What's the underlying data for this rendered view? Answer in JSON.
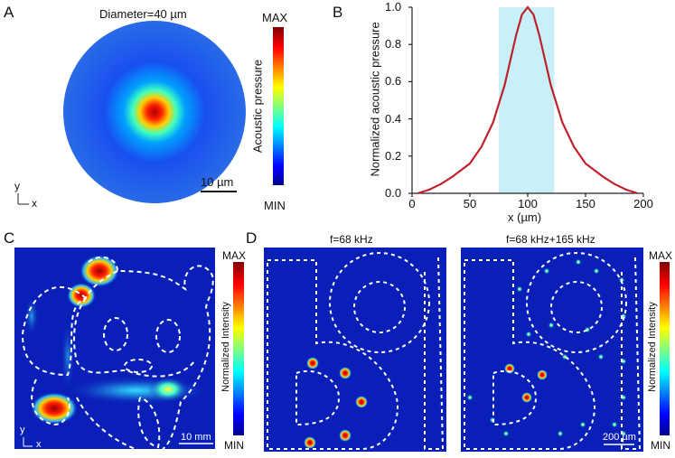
{
  "panels": {
    "a": {
      "label": "A",
      "title": "Diameter=40 µm",
      "scale_bar": "10 µm",
      "axis_y": "y",
      "axis_x": "x",
      "colorbar": {
        "label": "Acoustic pressure",
        "max": "MAX",
        "min": "MIN"
      }
    },
    "b": {
      "label": "B"
    },
    "c": {
      "label": "C",
      "scale_bar": "10 mm",
      "axis_y": "y",
      "axis_x": "x",
      "colorbar": {
        "label": "Normalized Intensity",
        "max": "MAX",
        "min": "MIN"
      }
    },
    "d": {
      "label": "D",
      "left_title": "f=68 kHz",
      "right_title": "f=68 kHz+165 kHz",
      "scale_bar": "200 µm",
      "colorbar": {
        "label": "Normalized Intensity",
        "max": "MAX",
        "min": "MIN"
      }
    }
  },
  "colors": {
    "curve": "#c0202a",
    "shade": "#c8f0f8",
    "field_bg": "#0a1fb8",
    "jet": [
      "#00008f",
      "#0000ff",
      "#00ffff",
      "#ffff00",
      "#ff0000",
      "#800000"
    ]
  },
  "chart_data": {
    "type": "line",
    "xlabel": "x (µm)",
    "ylabel": "Normalized acoustic pressure",
    "xlim": [
      0,
      200
    ],
    "ylim": [
      0,
      1.0
    ],
    "xticks": [
      "0",
      "50",
      "100",
      "150",
      "200"
    ],
    "yticks": [
      "0.0",
      "0.2",
      "0.4",
      "0.6",
      "0.8",
      "1.0"
    ],
    "shaded_region": [
      75,
      123
    ],
    "x": [
      5,
      15,
      25,
      35,
      50,
      60,
      70,
      75,
      80,
      90,
      95,
      100,
      105,
      110,
      120,
      125,
      130,
      140,
      150,
      165,
      175,
      185,
      195
    ],
    "y": [
      0.0,
      0.02,
      0.05,
      0.09,
      0.16,
      0.25,
      0.38,
      0.48,
      0.58,
      0.85,
      0.96,
      1.0,
      0.96,
      0.85,
      0.58,
      0.48,
      0.38,
      0.25,
      0.16,
      0.09,
      0.05,
      0.02,
      0.0
    ]
  }
}
